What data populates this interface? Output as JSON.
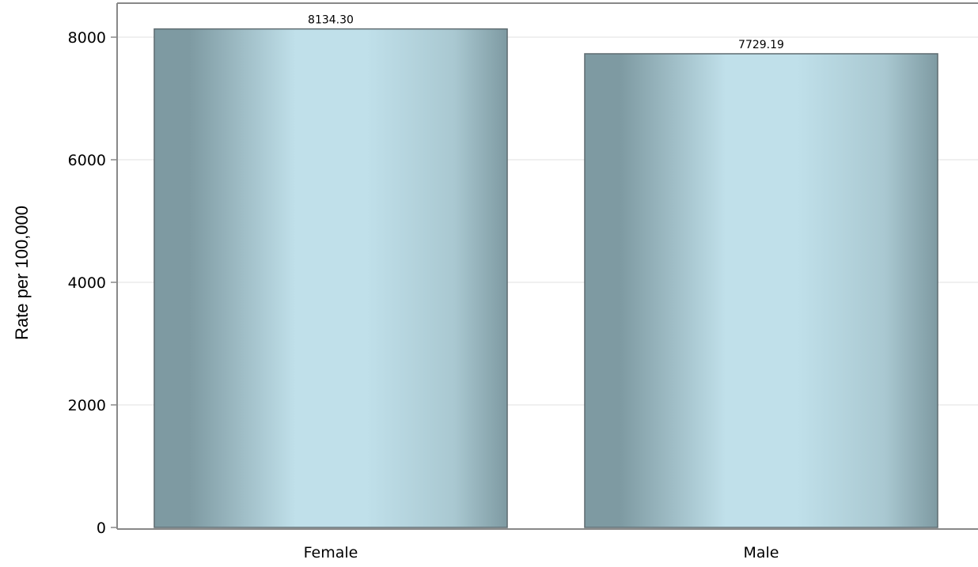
{
  "chart_data": {
    "type": "bar",
    "categories": [
      "Female",
      "Male"
    ],
    "values": [
      8134.3,
      7729.19
    ],
    "value_labels": [
      "8134.30",
      "7729.19"
    ],
    "title": "",
    "xlabel": "",
    "ylabel": "Rate per 100,000",
    "ylim": [
      0,
      8000
    ],
    "yticks": [
      0,
      2000,
      4000,
      6000,
      8000
    ],
    "ytick_labels": [
      "0",
      "2000",
      "4000",
      "6000",
      "8000"
    ],
    "grid": true,
    "legend": "none",
    "colors": {
      "bar_edge": "#5e6b70",
      "bar_dark": "#7e9aa2",
      "bar_light": "#c0e0ea",
      "grid": "#e6e6e6",
      "frame": "#888888"
    }
  }
}
